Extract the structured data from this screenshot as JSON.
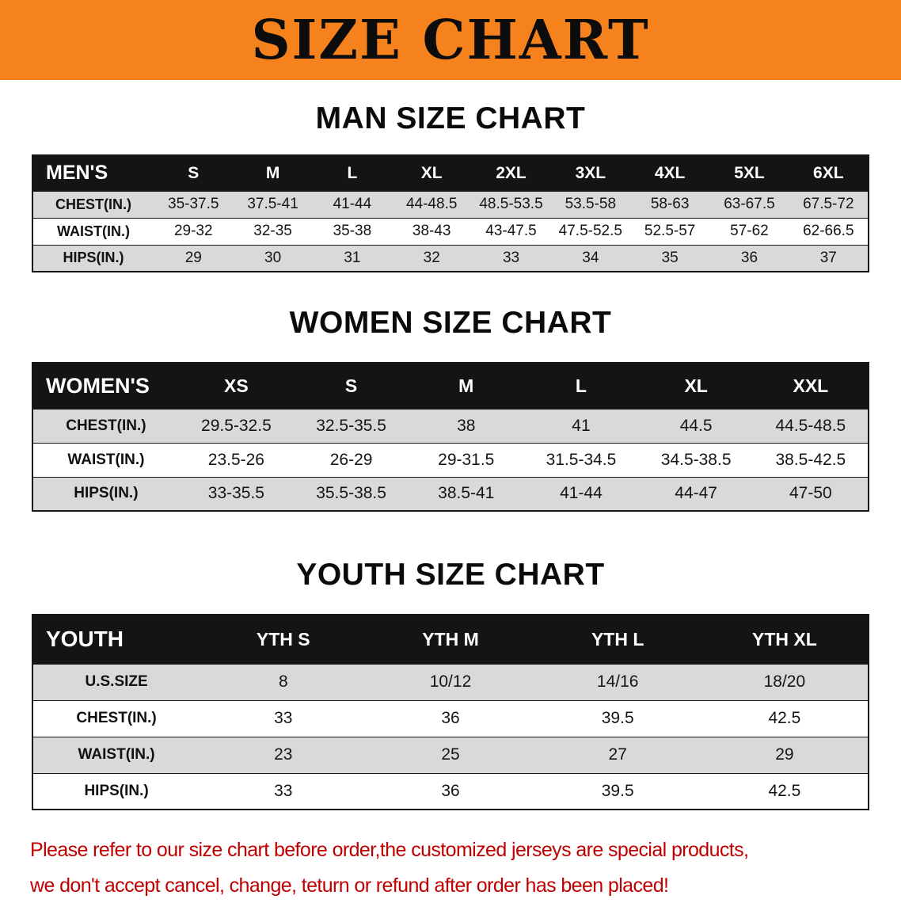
{
  "banner": {
    "title": "SIZE CHART"
  },
  "men": {
    "heading": "MAN SIZE CHART",
    "label": "MEN'S",
    "columns": [
      "S",
      "M",
      "L",
      "XL",
      "2XL",
      "3XL",
      "4XL",
      "5XL",
      "6XL"
    ],
    "rows": [
      {
        "label": "CHEST(IN.)",
        "values": [
          "35-37.5",
          "37.5-41",
          "41-44",
          "44-48.5",
          "48.5-53.5",
          "53.5-58",
          "58-63",
          "63-67.5",
          "67.5-72"
        ]
      },
      {
        "label": "WAIST(IN.)",
        "values": [
          "29-32",
          "32-35",
          "35-38",
          "38-43",
          "43-47.5",
          "47.5-52.5",
          "52.5-57",
          "57-62",
          "62-66.5"
        ]
      },
      {
        "label": "HIPS(IN.)",
        "values": [
          "29",
          "30",
          "31",
          "32",
          "33",
          "34",
          "35",
          "36",
          "37"
        ]
      }
    ]
  },
  "women": {
    "heading": "WOMEN SIZE CHART",
    "label": "WOMEN'S",
    "columns": [
      "XS",
      "S",
      "M",
      "L",
      "XL",
      "XXL"
    ],
    "rows": [
      {
        "label": "CHEST(IN.)",
        "values": [
          "29.5-32.5",
          "32.5-35.5",
          "38",
          "41",
          "44.5",
          "44.5-48.5"
        ]
      },
      {
        "label": "WAIST(IN.)",
        "values": [
          "23.5-26",
          "26-29",
          "29-31.5",
          "31.5-34.5",
          "34.5-38.5",
          "38.5-42.5"
        ]
      },
      {
        "label": "HIPS(IN.)",
        "values": [
          "33-35.5",
          "35.5-38.5",
          "38.5-41",
          "41-44",
          "44-47",
          "47-50"
        ]
      }
    ]
  },
  "youth": {
    "heading": "YOUTH SIZE CHART",
    "label": "YOUTH",
    "columns": [
      "YTH S",
      "YTH M",
      "YTH L",
      "YTH XL"
    ],
    "rows": [
      {
        "label": "U.S.SIZE",
        "values": [
          "8",
          "10/12",
          "14/16",
          "18/20"
        ]
      },
      {
        "label": "CHEST(IN.)",
        "values": [
          "33",
          "36",
          "39.5",
          "42.5"
        ]
      },
      {
        "label": "WAIST(IN.)",
        "values": [
          "23",
          "25",
          "27",
          "29"
        ]
      },
      {
        "label": "HIPS(IN.)",
        "values": [
          "33",
          "36",
          "39.5",
          "42.5"
        ]
      }
    ]
  },
  "disclaimer": {
    "line1": "Please refer to our size chart before order,the customized jerseys are special products,",
    "line2": "we don't accept cancel, change, teturn or refund after order has been placed!"
  },
  "colors": {
    "banner_bg": "#f5821d",
    "header_bg": "#141414",
    "row_alt": "#d9d9d9",
    "line": "#161616",
    "red": "#c00000"
  }
}
